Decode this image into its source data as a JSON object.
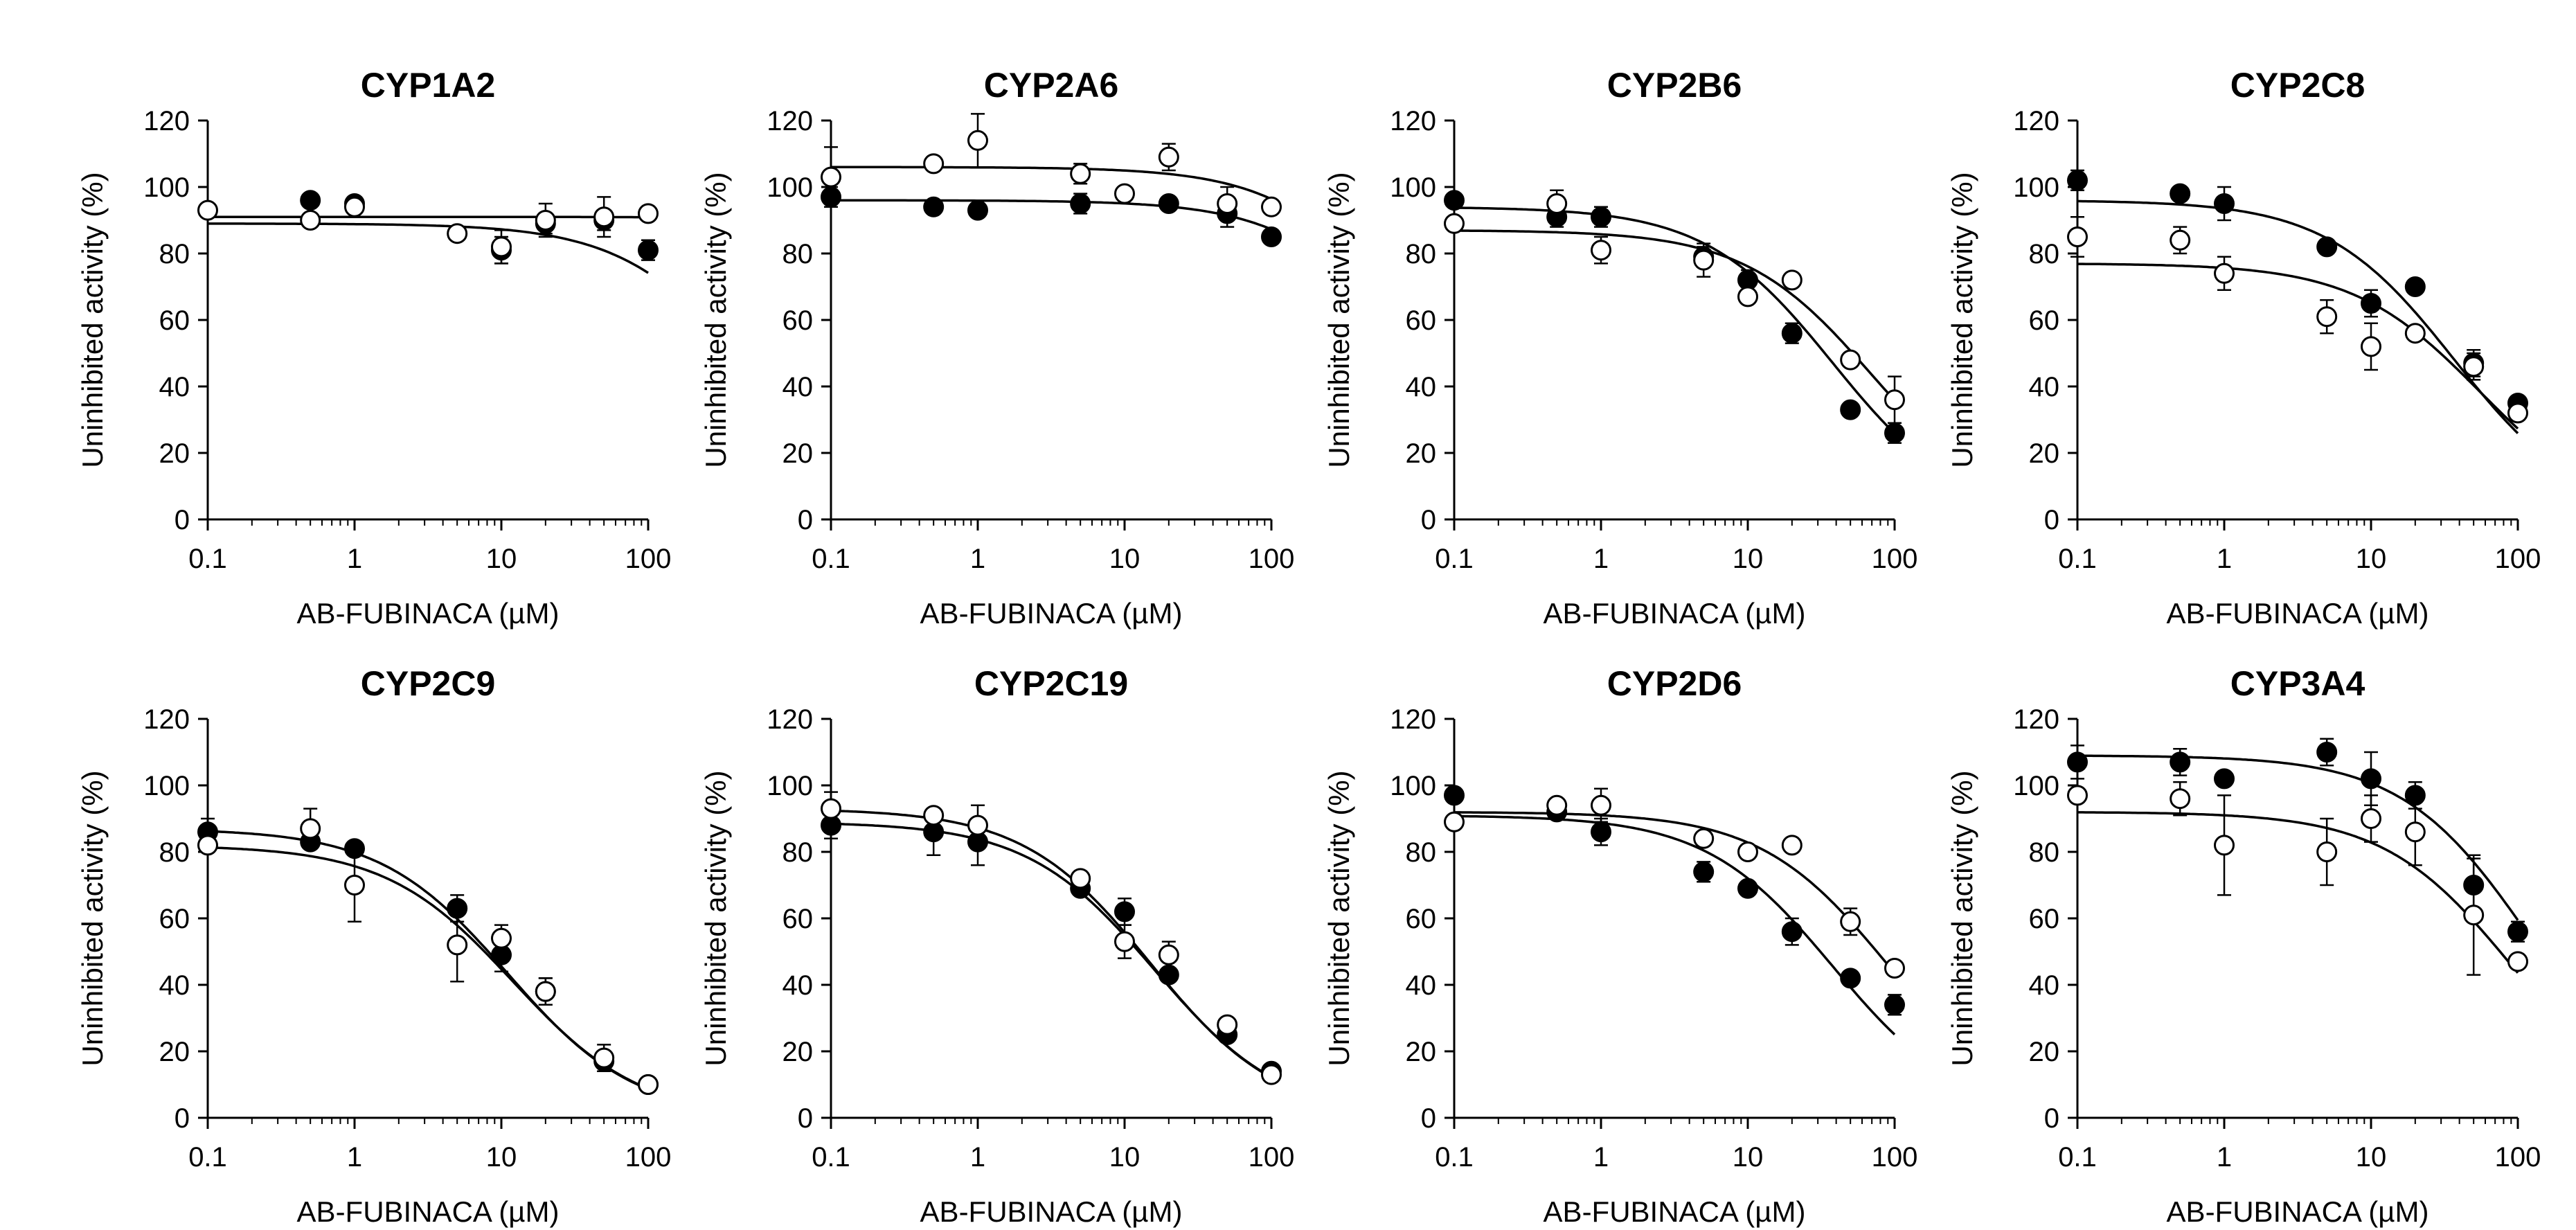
{
  "figure": {
    "xlabel": "AB-FUBINACA (µM)",
    "ylabel": "Uninhibited activity (%)",
    "xticks": [
      0.1,
      1,
      10,
      100
    ],
    "xtick_labels": [
      "0.1",
      "1",
      "10",
      "100"
    ],
    "yticks": [
      0,
      20,
      40,
      60,
      80,
      100,
      120
    ]
  },
  "chart_data": [
    {
      "type": "scatter",
      "title": "CYP1A2",
      "xlabel": "AB-FUBINACA (µM)",
      "ylabel": "Uninhibited activity (%)",
      "xscale": "log",
      "xlim": [
        0.1,
        100
      ],
      "ylim": [
        0,
        120
      ],
      "series": [
        {
          "name": "filled",
          "marker": "filled-circle",
          "x": [
            0.5,
            1,
            10,
            20,
            50,
            100
          ],
          "y": [
            96,
            95,
            81,
            89,
            90,
            81
          ],
          "err": [
            0,
            0,
            4,
            3,
            3,
            3
          ],
          "fit": {
            "top": 89,
            "bottom": 0,
            "ic50": 500,
            "hill": 1
          }
        },
        {
          "name": "open",
          "marker": "open-circle",
          "x": [
            0.1,
            0.5,
            1,
            5,
            10,
            20,
            50,
            100
          ],
          "y": [
            93,
            90,
            94,
            86,
            82,
            90,
            91,
            92
          ],
          "err": [
            0,
            0,
            0,
            2,
            5,
            5,
            6,
            0
          ],
          "fit": {
            "top": 91,
            "bottom": 0,
            "ic50": 100000,
            "hill": 1
          }
        }
      ]
    },
    {
      "type": "scatter",
      "title": "CYP2A6",
      "xlabel": "AB-FUBINACA (µM)",
      "ylabel": "Uninhibited activity (%)",
      "xscale": "log",
      "xlim": [
        0.1,
        100
      ],
      "ylim": [
        0,
        120
      ],
      "series": [
        {
          "name": "filled",
          "marker": "filled-circle",
          "x": [
            0.1,
            0.5,
            1,
            5,
            20,
            50,
            100
          ],
          "y": [
            97,
            94,
            93,
            95,
            95,
            92,
            85
          ],
          "err": [
            3,
            0,
            0,
            3,
            0,
            4,
            0
          ],
          "fit": {
            "top": 96,
            "bottom": 0,
            "ic50": 1000,
            "hill": 1
          }
        },
        {
          "name": "open",
          "marker": "open-circle",
          "x": [
            0.1,
            0.5,
            1,
            5,
            10,
            20,
            50,
            100
          ],
          "y": [
            103,
            107,
            114,
            104,
            98,
            109,
            95,
            94
          ],
          "err": [
            9,
            0,
            8,
            3,
            0,
            4,
            5,
            0
          ],
          "fit": {
            "top": 106,
            "bottom": 0,
            "ic50": 1000,
            "hill": 1
          }
        }
      ]
    },
    {
      "type": "scatter",
      "title": "CYP2B6",
      "xlabel": "AB-FUBINACA (µM)",
      "ylabel": "Uninhibited activity (%)",
      "xscale": "log",
      "xlim": [
        0.1,
        100
      ],
      "ylim": [
        0,
        120
      ],
      "series": [
        {
          "name": "filled",
          "marker": "filled-circle",
          "x": [
            0.1,
            0.5,
            1,
            5,
            10,
            20,
            50,
            100
          ],
          "y": [
            96,
            91,
            91,
            79,
            72,
            56,
            33,
            26
          ],
          "err": [
            0,
            3,
            3,
            3,
            3,
            3,
            0,
            3
          ],
          "fit": {
            "top": 94,
            "bottom": 0,
            "ic50": 38,
            "hill": 1
          }
        },
        {
          "name": "open",
          "marker": "open-circle",
          "x": [
            0.1,
            0.5,
            1,
            5,
            10,
            20,
            50,
            100
          ],
          "y": [
            89,
            95,
            81,
            78,
            67,
            72,
            48,
            36
          ],
          "err": [
            0,
            4,
            4,
            5,
            0,
            0,
            0,
            7
          ],
          "fit": {
            "top": 87,
            "bottom": 0,
            "ic50": 70,
            "hill": 1
          }
        }
      ]
    },
    {
      "type": "scatter",
      "title": "CYP2C8",
      "xlabel": "AB-FUBINACA (µM)",
      "ylabel": "Uninhibited activity (%)",
      "xscale": "log",
      "xlim": [
        0.1,
        100
      ],
      "ylim": [
        0,
        120
      ],
      "series": [
        {
          "name": "filled",
          "marker": "filled-circle",
          "x": [
            0.1,
            0.5,
            1,
            5,
            10,
            20,
            50,
            100
          ],
          "y": [
            102,
            98,
            95,
            82,
            65,
            70,
            47,
            35
          ],
          "err": [
            3,
            0,
            5,
            0,
            4,
            0,
            4,
            0
          ],
          "fit": {
            "top": 96,
            "bottom": 0,
            "ic50": 37,
            "hill": 1
          }
        },
        {
          "name": "open",
          "marker": "open-circle",
          "x": [
            0.1,
            0.5,
            1,
            5,
            10,
            20,
            50,
            100
          ],
          "y": [
            85,
            84,
            74,
            61,
            52,
            56,
            46,
            32
          ],
          "err": [
            6,
            4,
            5,
            5,
            7,
            0,
            4,
            0
          ],
          "fit": {
            "top": 77,
            "bottom": 0,
            "ic50": 55,
            "hill": 1
          }
        }
      ]
    },
    {
      "type": "scatter",
      "title": "CYP2C9",
      "xlabel": "AB-FUBINACA (µM)",
      "ylabel": "Uninhibited activity (%)",
      "xscale": "log",
      "xlim": [
        0.1,
        100
      ],
      "ylim": [
        0,
        120
      ],
      "series": [
        {
          "name": "filled",
          "marker": "filled-circle",
          "x": [
            0.1,
            0.5,
            1,
            5,
            10,
            20,
            50,
            100
          ],
          "y": [
            86,
            83,
            81,
            63,
            49,
            38,
            17,
            10
          ],
          "err": [
            4,
            0,
            0,
            4,
            5,
            4,
            3,
            0
          ],
          "fit": {
            "top": 87,
            "bottom": 0,
            "ic50": 11,
            "hill": 1
          }
        },
        {
          "name": "open",
          "marker": "open-circle",
          "x": [
            0.1,
            0.5,
            1,
            5,
            10,
            20,
            50,
            100
          ],
          "y": [
            82,
            87,
            70,
            52,
            54,
            38,
            18,
            10
          ],
          "err": [
            0,
            6,
            11,
            11,
            4,
            4,
            4,
            0
          ],
          "fit": {
            "top": 82,
            "bottom": 0,
            "ic50": 12,
            "hill": 1
          }
        }
      ]
    },
    {
      "type": "scatter",
      "title": "CYP2C19",
      "xlabel": "AB-FUBINACA (µM)",
      "ylabel": "Uninhibited activity (%)",
      "xscale": "log",
      "xlim": [
        0.1,
        100
      ],
      "ylim": [
        0,
        120
      ],
      "series": [
        {
          "name": "filled",
          "marker": "filled-circle",
          "x": [
            0.1,
            0.5,
            1,
            5,
            10,
            20,
            50,
            100
          ],
          "y": [
            88,
            86,
            83,
            69,
            62,
            43,
            25,
            14
          ],
          "err": [
            4,
            7,
            7,
            0,
            4,
            0,
            0,
            0
          ],
          "fit": {
            "top": 89,
            "bottom": 0,
            "ic50": 16,
            "hill": 1
          }
        },
        {
          "name": "open",
          "marker": "open-circle",
          "x": [
            0.1,
            0.5,
            1,
            5,
            10,
            20,
            50,
            100
          ],
          "y": [
            93,
            91,
            88,
            72,
            53,
            49,
            28,
            13
          ],
          "err": [
            5,
            0,
            6,
            0,
            5,
            4,
            0,
            0
          ],
          "fit": {
            "top": 93,
            "bottom": 0,
            "ic50": 15,
            "hill": 1
          }
        }
      ]
    },
    {
      "type": "scatter",
      "title": "CYP2D6",
      "xlabel": "AB-FUBINACA (µM)",
      "ylabel": "Uninhibited activity (%)",
      "xscale": "log",
      "xlim": [
        0.1,
        100
      ],
      "ylim": [
        0,
        120
      ],
      "series": [
        {
          "name": "filled",
          "marker": "filled-circle",
          "x": [
            0.1,
            0.5,
            1,
            5,
            10,
            20,
            50,
            100
          ],
          "y": [
            97,
            92,
            86,
            74,
            69,
            56,
            42,
            34
          ],
          "err": [
            0,
            0,
            4,
            3,
            0,
            4,
            0,
            3
          ],
          "fit": {
            "top": 91,
            "bottom": 0,
            "ic50": 38,
            "hill": 1
          }
        },
        {
          "name": "open",
          "marker": "open-circle",
          "x": [
            0.1,
            0.5,
            1,
            5,
            10,
            20,
            50,
            100
          ],
          "y": [
            89,
            94,
            94,
            84,
            80,
            82,
            59,
            45
          ],
          "err": [
            0,
            0,
            5,
            0,
            0,
            0,
            4,
            0
          ],
          "fit": {
            "top": 92,
            "bottom": 0,
            "ic50": 90,
            "hill": 1
          }
        }
      ]
    },
    {
      "type": "scatter",
      "title": "CYP3A4",
      "xlabel": "AB-FUBINACA (µM)",
      "ylabel": "Uninhibited activity (%)",
      "xscale": "log",
      "xlim": [
        0.1,
        100
      ],
      "ylim": [
        0,
        120
      ],
      "series": [
        {
          "name": "filled",
          "marker": "filled-circle",
          "x": [
            0.1,
            0.5,
            1,
            5,
            10,
            20,
            50,
            100
          ],
          "y": [
            107,
            107,
            102,
            110,
            102,
            97,
            70,
            56
          ],
          "err": [
            5,
            4,
            0,
            4,
            8,
            4,
            8,
            3
          ],
          "fit": {
            "top": 109,
            "bottom": 0,
            "ic50": 120,
            "hill": 1
          }
        },
        {
          "name": "open",
          "marker": "open-circle",
          "x": [
            0.1,
            0.5,
            1,
            5,
            10,
            20,
            50,
            100
          ],
          "y": [
            97,
            96,
            82,
            80,
            90,
            86,
            61,
            47
          ],
          "err": [
            0,
            5,
            15,
            10,
            7,
            10,
            18,
            0
          ],
          "fit": {
            "top": 92,
            "bottom": 0,
            "ic50": 90,
            "hill": 1
          }
        }
      ]
    }
  ]
}
